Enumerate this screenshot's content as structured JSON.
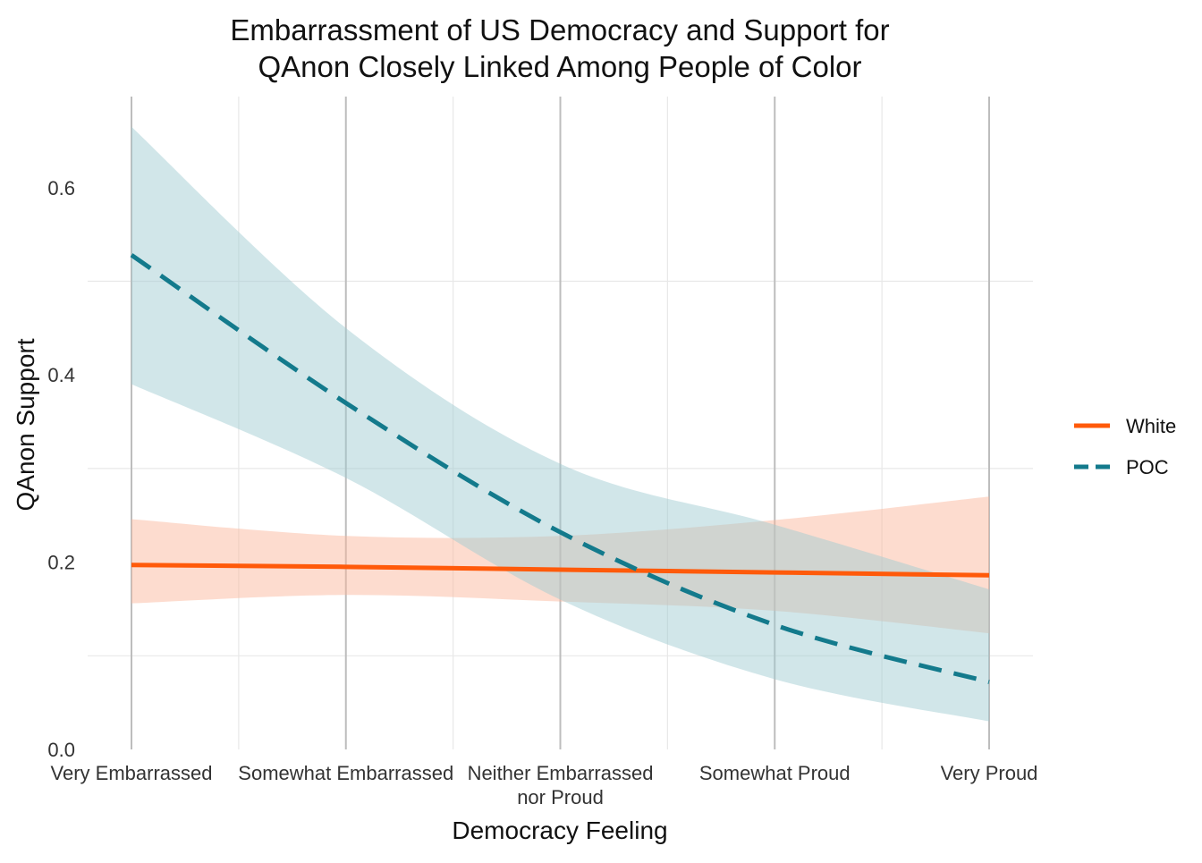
{
  "chart_data": {
    "type": "line",
    "title": "Embarrassment of US Democracy and Support for QAnon Closely Linked Among People of Color",
    "title_lines": [
      "Embarrassment of US Democracy and Support for",
      "QAnon Closely Linked Among People of Color"
    ],
    "xlabel": "Democracy Feeling",
    "ylabel": "QAnon Support",
    "categories": [
      "Very Embarrassed",
      "Somewhat Embarrassed",
      "Neither Embarrassed nor Proud",
      "Somewhat Proud",
      "Very Proud"
    ],
    "category_lines": [
      [
        "Very Embarrassed"
      ],
      [
        "Somewhat Embarrassed"
      ],
      [
        "Neither Embarrassed",
        "nor Proud"
      ],
      [
        "Somewhat Proud"
      ],
      [
        "Very Proud"
      ]
    ],
    "ylim": [
      0,
      0.7
    ],
    "yticks": [
      0.0,
      0.2,
      0.4,
      0.6
    ],
    "ytick_labels": [
      "0.0",
      "0.2",
      "0.4",
      "0.6"
    ],
    "grid": true,
    "legend_position": "right",
    "series": [
      {
        "name": "White",
        "color": "#ff5a0a",
        "line_style": "solid",
        "values": [
          0.197,
          0.195,
          0.192,
          0.189,
          0.186
        ],
        "ci_lower": [
          0.156,
          0.165,
          0.158,
          0.148,
          0.124
        ],
        "ci_upper": [
          0.246,
          0.228,
          0.228,
          0.245,
          0.27
        ]
      },
      {
        "name": "POC",
        "color": "#137a8c",
        "line_style": "dashed",
        "values": [
          0.528,
          0.37,
          0.232,
          0.133,
          0.072
        ],
        "ci_lower": [
          0.39,
          0.29,
          0.16,
          0.075,
          0.03
        ],
        "ci_upper": [
          0.665,
          0.45,
          0.305,
          0.24,
          0.171
        ]
      }
    ]
  }
}
